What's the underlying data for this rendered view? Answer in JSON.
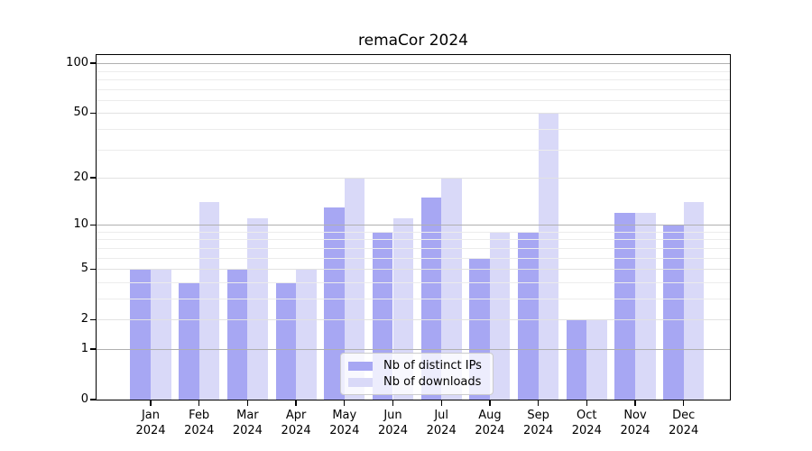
{
  "chart_data": {
    "type": "bar",
    "title": "remaCor 2024",
    "categories": [
      "Jan",
      "Feb",
      "Mar",
      "Apr",
      "May",
      "Jun",
      "Jul",
      "Aug",
      "Sep",
      "Oct",
      "Nov",
      "Dec"
    ],
    "category_year": "2024",
    "series": [
      {
        "name": "Nb of distinct IPs",
        "color": "#a7a7f3",
        "values": [
          5,
          4,
          5,
          4,
          13,
          9,
          15,
          6,
          9,
          2,
          12,
          10
        ]
      },
      {
        "name": "Nb of downloads",
        "color": "#d9d9f8",
        "values": [
          5,
          14,
          11,
          5,
          20,
          11,
          20,
          9,
          50,
          2,
          12,
          14
        ]
      }
    ],
    "xlabel": "",
    "ylabel": "",
    "yscale": "log1p",
    "ylim": [
      0,
      112
    ],
    "ytick_labels": [
      "100",
      "50",
      "20",
      "10",
      "5",
      "2",
      "1",
      "0"
    ],
    "ytick_values": [
      100,
      50,
      20,
      10,
      5,
      2,
      1,
      0
    ],
    "grid_major": [
      1,
      10,
      100
    ],
    "grid_faint": [
      2,
      5,
      20,
      50
    ],
    "grid_minor": [
      3,
      4,
      6,
      7,
      8,
      9,
      30,
      40,
      60,
      70,
      80,
      90
    ],
    "grid": "on",
    "legend_position": "lower center"
  }
}
